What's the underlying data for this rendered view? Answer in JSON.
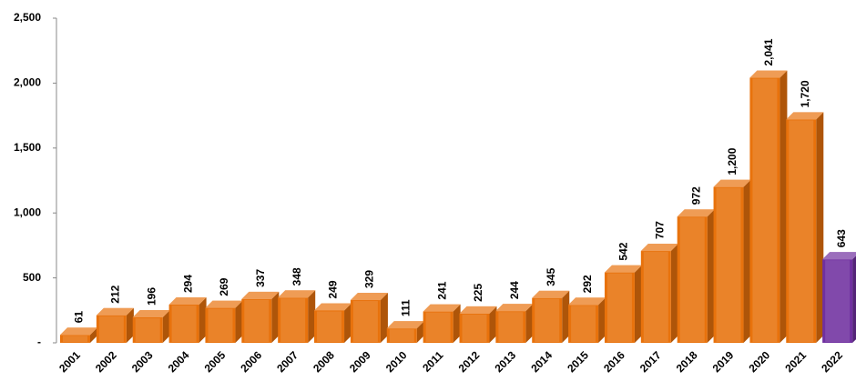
{
  "chart_data": {
    "type": "bar",
    "categories": [
      "2001",
      "2002",
      "2003",
      "2004",
      "2005",
      "2006",
      "2007",
      "2008",
      "2009",
      "2010",
      "2011",
      "2012",
      "2013",
      "2014",
      "2015",
      "2016",
      "2017",
      "2018",
      "2019",
      "2020",
      "2021",
      "2022"
    ],
    "values": [
      61,
      212,
      196,
      294,
      269,
      337,
      348,
      249,
      329,
      111,
      241,
      225,
      244,
      345,
      292,
      542,
      707,
      972,
      1200,
      2041,
      1720,
      643
    ],
    "value_labels": [
      "61",
      "212",
      "196",
      "294",
      "269",
      "337",
      "348",
      "249",
      "329",
      "111",
      "241",
      "225",
      "244",
      "345",
      "292",
      "542",
      "707",
      "972",
      "1,200",
      "2,041",
      "1,720",
      "643"
    ],
    "colors": [
      "#e8720c",
      "#e8720c",
      "#e8720c",
      "#e8720c",
      "#e8720c",
      "#e8720c",
      "#e8720c",
      "#e8720c",
      "#e8720c",
      "#e8720c",
      "#e8720c",
      "#e8720c",
      "#e8720c",
      "#e8720c",
      "#e8720c",
      "#e8720c",
      "#e8720c",
      "#e8720c",
      "#e8720c",
      "#e8720c",
      "#e8720c",
      "#7030a0"
    ],
    "ylim": [
      0,
      2500
    ],
    "yticks": [
      {
        "value": 0,
        "label": "-"
      },
      500,
      {
        "value": 1000,
        "label": "1,000"
      },
      {
        "value": 1500,
        "label": "1,500"
      },
      {
        "value": 2000,
        "label": "2,000"
      },
      {
        "value": 2500,
        "label": "2,500"
      }
    ],
    "grid": false
  }
}
